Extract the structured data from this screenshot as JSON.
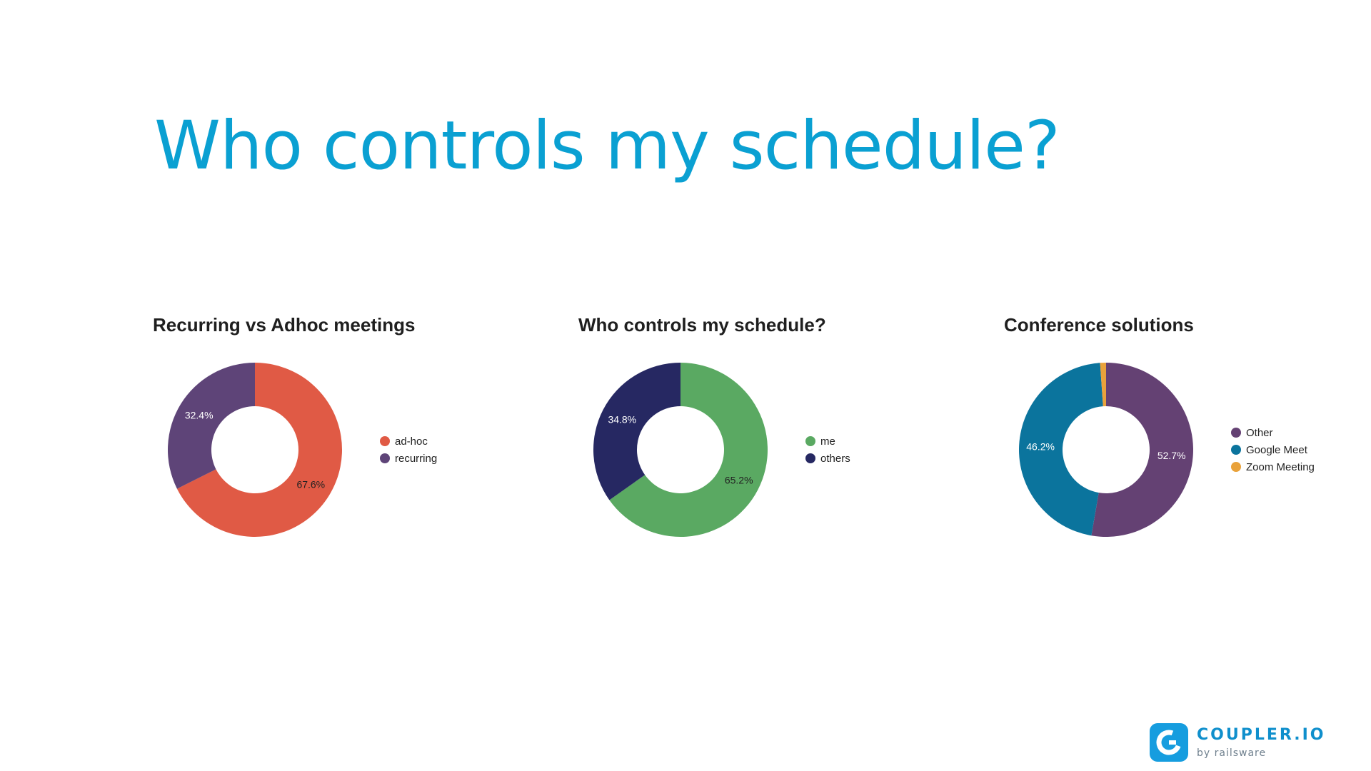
{
  "page": {
    "title": "Who controls my schedule?"
  },
  "chart_data": [
    {
      "type": "pie",
      "title": "Recurring vs Adhoc meetings",
      "categories": [
        "ad-hoc",
        "recurring"
      ],
      "values": [
        67.6,
        32.4
      ],
      "labels": [
        "67.6%",
        "32.4%"
      ],
      "colors": [
        "#e05a45",
        "#5e4478"
      ],
      "label_colors": [
        "#222222",
        "#ffffff"
      ],
      "donut": true,
      "legend": "right"
    },
    {
      "type": "pie",
      "title": "Who controls my schedule?",
      "categories": [
        "me",
        "others"
      ],
      "values": [
        65.2,
        34.8
      ],
      "labels": [
        "65.2%",
        "34.8%"
      ],
      "colors": [
        "#5aa962",
        "#262862"
      ],
      "label_colors": [
        "#222222",
        "#ffffff"
      ],
      "donut": true,
      "legend": "right"
    },
    {
      "type": "pie",
      "title": "Conference solutions",
      "categories": [
        "Other",
        "Google Meet",
        "Zoom Meeting"
      ],
      "values": [
        52.7,
        46.2,
        1.1
      ],
      "labels": [
        "52.7%",
        "46.2%",
        ""
      ],
      "colors": [
        "#644173",
        "#0b749d",
        "#e9a23b"
      ],
      "label_colors": [
        "#ffffff",
        "#ffffff",
        "#ffffff"
      ],
      "donut": true,
      "legend": "right"
    }
  ],
  "logo": {
    "name": "COUPLER.IO",
    "subtitle": "by railsware",
    "color": "#169ddf"
  }
}
